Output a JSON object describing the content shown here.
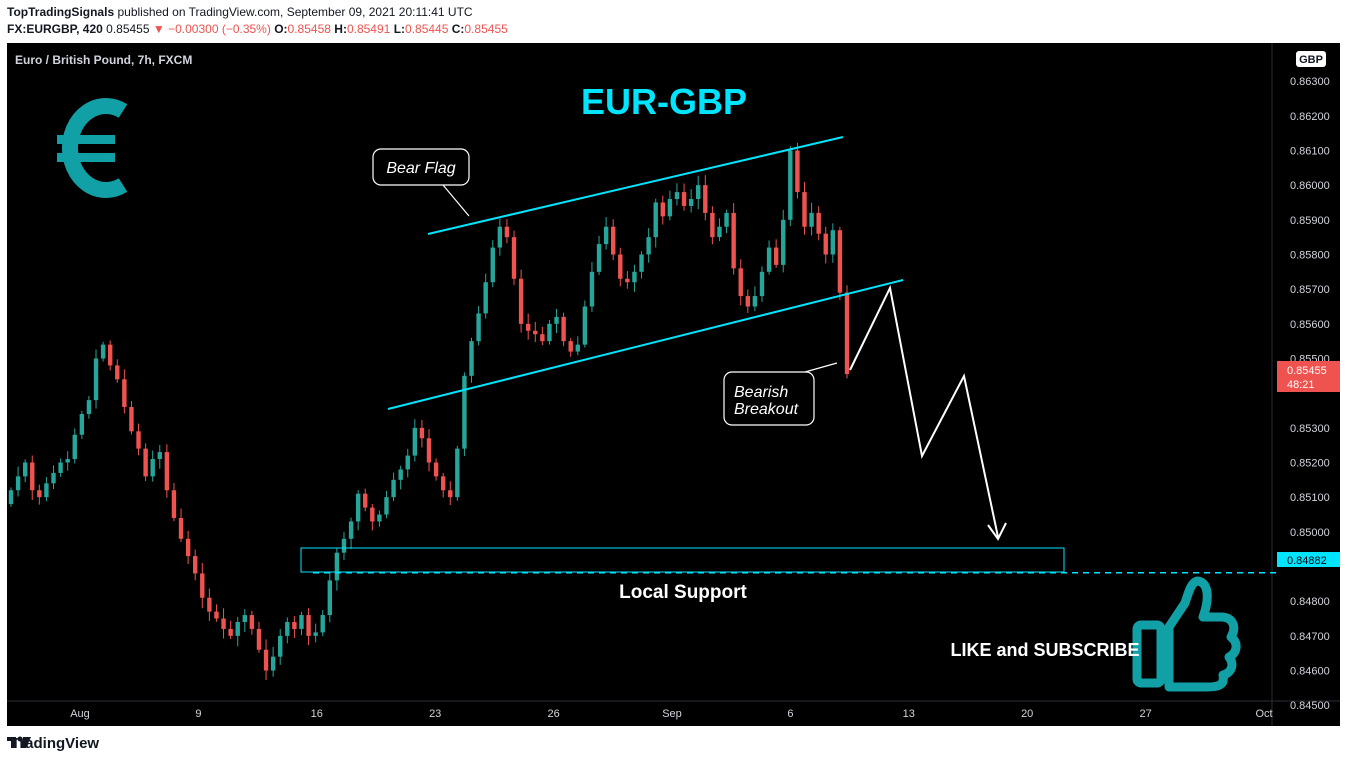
{
  "header": {
    "publisher": "TopTradingSignals",
    "published_text": "published on TradingView.com, September 09, 2021 20:11:41 UTC",
    "symbol_line": "FX:EURGBP, 420",
    "last": "0.85455",
    "change": "▼ −0.00300 (−0.35%)",
    "o_label": "O:",
    "o_value": "0.85458",
    "h_label": "H:",
    "h_value": "0.85491",
    "l_label": "L:",
    "l_value": "0.85445",
    "c_label": "C:",
    "c_value": "0.85455"
  },
  "footer": {
    "brand": "TradingView"
  },
  "colors": {
    "up": "#26a69a",
    "down": "#ef5350",
    "channel": "#00e5ff",
    "accent": "#00bcd4",
    "thumb": "#10a0a6"
  },
  "chart_data": {
    "type": "candlestick",
    "symbol_title": "Euro / British Pound, 7h, FXCM",
    "currency_badge": "GBP",
    "title": "EUR-GBP",
    "ylim": [
      0.8444,
      0.8641
    ],
    "y_ticks": [
      "0.86300",
      "0.86200",
      "0.86100",
      "0.86000",
      "0.85900",
      "0.85800",
      "0.85700",
      "0.85600",
      "0.85500",
      "0.85300",
      "0.85200",
      "0.85100",
      "0.85000",
      "0.84800",
      "0.84700",
      "0.84600",
      "0.84500"
    ],
    "x_ticks": [
      "Aug",
      "9",
      "16",
      "23",
      "26",
      "Sep",
      "6",
      "13",
      "20",
      "27",
      "Oct"
    ],
    "last_price": {
      "value": 0.85455,
      "label": "0.85455",
      "countdown": "48:21"
    },
    "support_level": {
      "value": 0.84882,
      "label": "0.84882"
    },
    "annotations": {
      "bear_flag": "Bear Flag",
      "bearish_breakout_1": "Bearish",
      "bearish_breakout_2": "Breakout",
      "local_support": "Local Support",
      "like_subscribe": "LIKE and SUBSCRIBE"
    },
    "close_path": [
      0.8512,
      0.8516,
      0.852,
      0.8512,
      0.851,
      0.8514,
      0.8517,
      0.852,
      0.8521,
      0.8528,
      0.8534,
      0.8538,
      0.855,
      0.8554,
      0.8548,
      0.8544,
      0.8536,
      0.8529,
      0.8524,
      0.8516,
      0.8521,
      0.8523,
      0.8512,
      0.8504,
      0.8498,
      0.8493,
      0.8488,
      0.8481,
      0.8477,
      0.8475,
      0.8472,
      0.847,
      0.8474,
      0.8476,
      0.8472,
      0.8466,
      0.846,
      0.8464,
      0.847,
      0.8474,
      0.8472,
      0.8476,
      0.847,
      0.8471,
      0.8476,
      0.8486,
      0.8494,
      0.8498,
      0.8503,
      0.8511,
      0.8507,
      0.8503,
      0.8505,
      0.851,
      0.8515,
      0.8518,
      0.8522,
      0.853,
      0.8527,
      0.852,
      0.8516,
      0.8512,
      0.851,
      0.8524,
      0.8545,
      0.8555,
      0.8563,
      0.8572,
      0.8582,
      0.8588,
      0.8585,
      0.8573,
      0.856,
      0.8558,
      0.8557,
      0.8555,
      0.856,
      0.8562,
      0.8555,
      0.8552,
      0.8554,
      0.8565,
      0.8575,
      0.8583,
      0.8588,
      0.858,
      0.8573,
      0.8572,
      0.8575,
      0.858,
      0.8585,
      0.8595,
      0.8591,
      0.8596,
      0.8598,
      0.8594,
      0.8596,
      0.86,
      0.8592,
      0.8585,
      0.8588,
      0.8592,
      0.8576,
      0.8568,
      0.8565,
      0.8568,
      0.8575,
      0.8582,
      0.8577,
      0.859,
      0.861,
      0.8598,
      0.8588,
      0.8592,
      0.8586,
      0.858,
      0.8587,
      0.8569,
      0.85455
    ]
  }
}
